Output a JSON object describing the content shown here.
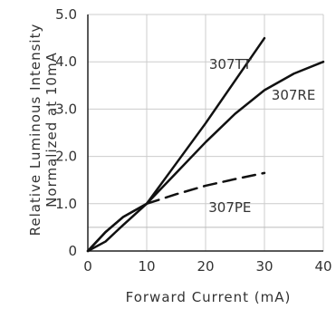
{
  "chart_data": {
    "type": "line",
    "xlabel": "Forward Current (mA)",
    "ylabel_line1": "Relative Luminous Intensity",
    "ylabel_line2": "Normalized at 10mA",
    "xlim": [
      0,
      40
    ],
    "ylim": [
      0,
      5.0
    ],
    "x_ticks": [
      0,
      10,
      20,
      30,
      40
    ],
    "x_tick_labels": [
      "0",
      "10",
      "20",
      "30",
      "40"
    ],
    "y_ticks": [
      0,
      1.0,
      2.0,
      3.0,
      4.0,
      5.0
    ],
    "y_tick_labels": [
      "0",
      "1.0",
      "2.0",
      "3.0",
      "4.0",
      "5.0"
    ],
    "grid": true,
    "series": [
      {
        "name": "307TT",
        "style": "solid",
        "x": [
          0,
          3,
          6,
          10,
          15,
          20,
          25,
          30
        ],
        "y": [
          0,
          0.4,
          0.72,
          1.0,
          1.85,
          2.7,
          3.6,
          4.5
        ]
      },
      {
        "name": "307RE",
        "style": "solid",
        "x": [
          0,
          3,
          6,
          10,
          15,
          20,
          25,
          30,
          35,
          40
        ],
        "y": [
          0,
          0.2,
          0.55,
          1.0,
          1.65,
          2.3,
          2.9,
          3.4,
          3.75,
          4.0
        ]
      },
      {
        "name": "307PE",
        "style": "dashed",
        "x": [
          0,
          3,
          6,
          10,
          15,
          20,
          25,
          30
        ],
        "y": [
          0,
          0.4,
          0.72,
          1.0,
          1.2,
          1.38,
          1.52,
          1.65
        ]
      }
    ],
    "reference_line_y": 0.5
  }
}
